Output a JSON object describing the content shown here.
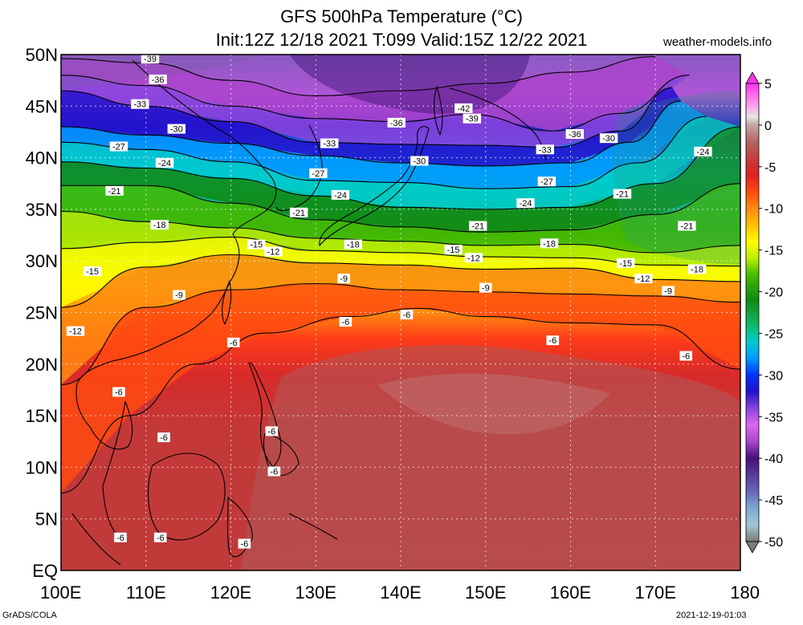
{
  "header": {
    "title": "GFS 500hPa Temperature (°C)",
    "subtitle": "Init:12Z 12/18 2021 T:099 Valid:15Z 12/22 2021",
    "site": "weather-models.info"
  },
  "footer": {
    "credit": "GrADS/COLA",
    "timestamp": "2021-12-19-01:03"
  },
  "map": {
    "lon_range": [
      100,
      180
    ],
    "lat_range": [
      0,
      50
    ],
    "x_ticks": [
      {
        "lon": 100,
        "label": "100E"
      },
      {
        "lon": 110,
        "label": "110E"
      },
      {
        "lon": 120,
        "label": "120E"
      },
      {
        "lon": 130,
        "label": "130E"
      },
      {
        "lon": 140,
        "label": "140E"
      },
      {
        "lon": 150,
        "label": "150E"
      },
      {
        "lon": 160,
        "label": "160E"
      },
      {
        "lon": 170,
        "label": "170E"
      },
      {
        "lon": 180,
        "label": "180"
      }
    ],
    "y_ticks": [
      {
        "lat": 50,
        "label": "50N"
      },
      {
        "lat": 45,
        "label": "45N"
      },
      {
        "lat": 40,
        "label": "40N"
      },
      {
        "lat": 35,
        "label": "35N"
      },
      {
        "lat": 30,
        "label": "30N"
      },
      {
        "lat": 25,
        "label": "25N"
      },
      {
        "lat": 20,
        "label": "20N"
      },
      {
        "lat": 15,
        "label": "15N"
      },
      {
        "lat": 10,
        "label": "10N"
      },
      {
        "lat": 5,
        "label": "5N"
      },
      {
        "lat": 0,
        "label": "EQ"
      }
    ],
    "isotherms": [
      {
        "temp": -39,
        "points": [
          [
            100,
            49.6
          ],
          [
            110,
            49.2
          ],
          [
            120,
            47.5
          ],
          [
            130,
            46
          ],
          [
            140,
            46.5
          ],
          [
            150,
            47.2
          ],
          [
            160,
            48.3
          ],
          [
            170,
            49.8
          ]
        ]
      },
      {
        "temp": -36,
        "points": [
          [
            100,
            48
          ],
          [
            110,
            47
          ],
          [
            120,
            45
          ],
          [
            130,
            43.8
          ],
          [
            140,
            43.5
          ],
          [
            148,
            44.2
          ],
          [
            158,
            42.6
          ],
          [
            166,
            44.3
          ],
          [
            174,
            48
          ]
        ]
      },
      {
        "temp": -33,
        "points": [
          [
            100,
            46.5
          ],
          [
            110,
            45
          ],
          [
            120,
            43.5
          ],
          [
            130,
            41.5
          ],
          [
            140,
            41.3
          ],
          [
            150,
            41.2
          ],
          [
            158,
            41
          ],
          [
            166,
            42.6
          ],
          [
            172,
            46.8
          ]
        ]
      },
      {
        "temp": -30,
        "points": [
          [
            100,
            43
          ],
          [
            110,
            42.2
          ],
          [
            120,
            41.4
          ],
          [
            130,
            40.2
          ],
          [
            140,
            39.5
          ],
          [
            150,
            39.2
          ],
          [
            160,
            39.5
          ],
          [
            167,
            41.5
          ],
          [
            173,
            45.5
          ]
        ]
      },
      {
        "temp": -27,
        "points": [
          [
            100,
            41.5
          ],
          [
            110,
            40.8
          ],
          [
            120,
            39.6
          ],
          [
            130,
            37.8
          ],
          [
            140,
            37.6
          ],
          [
            150,
            37
          ],
          [
            160,
            37.2
          ],
          [
            168,
            39.5
          ],
          [
            176,
            44
          ]
        ]
      },
      {
        "temp": -24,
        "points": [
          [
            100,
            39.6
          ],
          [
            110,
            39
          ],
          [
            120,
            38
          ],
          [
            130,
            36.3
          ],
          [
            140,
            35.2
          ],
          [
            150,
            35
          ],
          [
            160,
            35.2
          ],
          [
            170,
            37.5
          ],
          [
            180,
            43
          ]
        ]
      },
      {
        "temp": -21,
        "points": [
          [
            100,
            37.3
          ],
          [
            110,
            37.3
          ],
          [
            120,
            35.6
          ],
          [
            130,
            34
          ],
          [
            140,
            33.3
          ],
          [
            150,
            32.8
          ],
          [
            160,
            33
          ],
          [
            170,
            34.5
          ],
          [
            180,
            37.5
          ]
        ]
      },
      {
        "temp": -18,
        "points": [
          [
            100,
            34.8
          ],
          [
            110,
            33.8
          ],
          [
            120,
            33.2
          ],
          [
            130,
            32.2
          ],
          [
            140,
            31.9
          ],
          [
            150,
            31.5
          ],
          [
            160,
            31.6
          ],
          [
            170,
            30.8
          ],
          [
            180,
            31.5
          ]
        ]
      },
      {
        "temp": -15,
        "points": [
          [
            100,
            31.2
          ],
          [
            110,
            31.8
          ],
          [
            120,
            32.3
          ],
          [
            130,
            31
          ],
          [
            140,
            30.8
          ],
          [
            150,
            30.4
          ],
          [
            160,
            30.3
          ],
          [
            170,
            29.6
          ],
          [
            180,
            29.5
          ]
        ]
      },
      {
        "temp": -12,
        "points": [
          [
            100,
            25.5
          ],
          [
            110,
            29.4
          ],
          [
            120,
            30.6
          ],
          [
            130,
            29.8
          ],
          [
            140,
            29.6
          ],
          [
            150,
            29.2
          ],
          [
            160,
            29.3
          ],
          [
            170,
            28.2
          ],
          [
            180,
            28
          ]
        ]
      },
      {
        "temp": -9,
        "points": [
          [
            100,
            18
          ],
          [
            110,
            25.5
          ],
          [
            120,
            27.2
          ],
          [
            130,
            27.8
          ],
          [
            140,
            27.2
          ],
          [
            150,
            27
          ],
          [
            160,
            26.8
          ],
          [
            170,
            26.6
          ],
          [
            180,
            26
          ]
        ]
      },
      {
        "temp": -6,
        "points": [
          [
            100,
            7.5
          ],
          [
            108,
            15
          ],
          [
            116,
            20
          ],
          [
            124,
            23
          ],
          [
            134,
            24.6
          ],
          [
            142,
            25.4
          ],
          [
            150,
            24.6
          ],
          [
            160,
            24
          ],
          [
            170,
            23.8
          ],
          [
            180,
            19.5
          ]
        ]
      }
    ],
    "contour_labels": [
      {
        "text": "-39",
        "lon": 110.5,
        "lat": 49.6
      },
      {
        "text": "-36",
        "lon": 111.4,
        "lat": 47.6
      },
      {
        "text": "-33",
        "lon": 109.3,
        "lat": 45.2
      },
      {
        "text": "-30",
        "lon": 113.6,
        "lat": 42.8
      },
      {
        "text": "-27",
        "lon": 106.8,
        "lat": 41.1
      },
      {
        "text": "-24",
        "lon": 112.2,
        "lat": 39.5
      },
      {
        "text": "-21",
        "lon": 106.3,
        "lat": 36.8
      },
      {
        "text": "-18",
        "lon": 111.6,
        "lat": 33.5
      },
      {
        "text": "-15",
        "lon": 103.7,
        "lat": 29.0
      },
      {
        "text": "-12",
        "lon": 101.7,
        "lat": 23.2
      },
      {
        "text": "-9",
        "lon": 113.9,
        "lat": 26.7
      },
      {
        "text": "-6",
        "lon": 106.8,
        "lat": 17.3
      },
      {
        "text": "-6",
        "lon": 112.1,
        "lat": 12.9
      },
      {
        "text": "-6",
        "lon": 107.0,
        "lat": 3.2
      },
      {
        "text": "-6",
        "lon": 111.7,
        "lat": 3.2
      },
      {
        "text": "-6",
        "lon": 120.3,
        "lat": 22.1
      },
      {
        "text": "-6",
        "lon": 124.8,
        "lat": 13.5
      },
      {
        "text": "-6",
        "lon": 125.1,
        "lat": 9.6
      },
      {
        "text": "-6",
        "lon": 121.6,
        "lat": 2.6
      },
      {
        "text": "-6",
        "lon": 133.5,
        "lat": 24.1
      },
      {
        "text": "-6",
        "lon": 140.7,
        "lat": 24.8
      },
      {
        "text": "-6",
        "lon": 157.9,
        "lat": 22.3
      },
      {
        "text": "-6",
        "lon": 173.6,
        "lat": 20.8
      },
      {
        "text": "-15",
        "lon": 123.0,
        "lat": 31.6
      },
      {
        "text": "-12",
        "lon": 125.0,
        "lat": 30.9
      },
      {
        "text": "-9",
        "lon": 133.3,
        "lat": 28.3
      },
      {
        "text": "-21",
        "lon": 128.0,
        "lat": 34.7
      },
      {
        "text": "-18",
        "lon": 134.4,
        "lat": 31.6
      },
      {
        "text": "-27",
        "lon": 130.3,
        "lat": 38.5
      },
      {
        "text": "-24",
        "lon": 132.9,
        "lat": 36.4
      },
      {
        "text": "-33",
        "lon": 131.6,
        "lat": 41.4
      },
      {
        "text": "-36",
        "lon": 139.5,
        "lat": 43.4
      },
      {
        "text": "-30",
        "lon": 142.2,
        "lat": 39.7
      },
      {
        "text": "-42",
        "lon": 147.4,
        "lat": 44.8
      },
      {
        "text": "-39",
        "lon": 148.4,
        "lat": 43.8
      },
      {
        "text": "-21",
        "lon": 149.1,
        "lat": 33.4
      },
      {
        "text": "-15",
        "lon": 146.2,
        "lat": 31.1
      },
      {
        "text": "-12",
        "lon": 148.6,
        "lat": 30.3
      },
      {
        "text": "-9",
        "lon": 150.0,
        "lat": 27.4
      },
      {
        "text": "-27",
        "lon": 157.2,
        "lat": 37.7
      },
      {
        "text": "-24",
        "lon": 154.7,
        "lat": 35.6
      },
      {
        "text": "-33",
        "lon": 157.0,
        "lat": 40.8
      },
      {
        "text": "-36",
        "lon": 160.5,
        "lat": 42.3
      },
      {
        "text": "-30",
        "lon": 164.5,
        "lat": 41.9
      },
      {
        "text": "-18",
        "lon": 157.5,
        "lat": 31.7
      },
      {
        "text": "-15",
        "lon": 166.5,
        "lat": 29.8
      },
      {
        "text": "-12",
        "lon": 168.6,
        "lat": 28.3
      },
      {
        "text": "-9",
        "lon": 171.5,
        "lat": 27.1
      },
      {
        "text": "-21",
        "lon": 166.1,
        "lat": 36.5
      },
      {
        "text": "-21",
        "lon": 173.7,
        "lat": 33.4
      },
      {
        "text": "-24",
        "lon": 175.6,
        "lat": 40.6
      },
      {
        "text": "-18",
        "lon": 174.9,
        "lat": 29.2
      }
    ]
  },
  "colorbar": {
    "min": -50,
    "max": 5,
    "tick_labels": [
      {
        "value": 5,
        "label": "5"
      },
      {
        "value": 0,
        "label": "0"
      },
      {
        "value": -5,
        "label": "-5"
      },
      {
        "value": -10,
        "label": "-10"
      },
      {
        "value": -15,
        "label": "-15"
      },
      {
        "value": -20,
        "label": "-20"
      },
      {
        "value": -25,
        "label": "-25"
      },
      {
        "value": -30,
        "label": "-30"
      },
      {
        "value": -35,
        "label": "-35"
      },
      {
        "value": -40,
        "label": "-40"
      },
      {
        "value": -45,
        "label": "-45"
      },
      {
        "value": -50,
        "label": "-50"
      }
    ],
    "colors": [
      {
        "temp": 5,
        "color": "#ff33ee"
      },
      {
        "temp": 2.5,
        "color": "#ff99ee"
      },
      {
        "temp": 1,
        "color": "#e6e6e6"
      },
      {
        "temp": 0,
        "color": "#c8a5a5"
      },
      {
        "temp": -2,
        "color": "#b46464"
      },
      {
        "temp": -4,
        "color": "#c83c3c"
      },
      {
        "temp": -6,
        "color": "#e02020"
      },
      {
        "temp": -8,
        "color": "#ff4a10"
      },
      {
        "temp": -10,
        "color": "#ff8a10"
      },
      {
        "temp": -12,
        "color": "#ffc000"
      },
      {
        "temp": -14,
        "color": "#ffff00"
      },
      {
        "temp": -16,
        "color": "#bbee00"
      },
      {
        "temp": -18,
        "color": "#44bb00"
      },
      {
        "temp": -21,
        "color": "#118a11"
      },
      {
        "temp": -24,
        "color": "#10b96a"
      },
      {
        "temp": -26,
        "color": "#00cccc"
      },
      {
        "temp": -28,
        "color": "#0099ff"
      },
      {
        "temp": -30,
        "color": "#0033ff"
      },
      {
        "temp": -32,
        "color": "#2211cc"
      },
      {
        "temp": -34,
        "color": "#8844dd"
      },
      {
        "temp": -36,
        "color": "#dd66ee"
      },
      {
        "temp": -38,
        "color": "#aa44cc"
      },
      {
        "temp": -40,
        "color": "#44117a"
      },
      {
        "temp": -42,
        "color": "#5a3a9a"
      },
      {
        "temp": -44,
        "color": "#6666bb"
      },
      {
        "temp": -46,
        "color": "#7ea8d0"
      },
      {
        "temp": -48,
        "color": "#a0c8d8"
      },
      {
        "temp": -50,
        "color": "#7a7a7a"
      }
    ]
  }
}
